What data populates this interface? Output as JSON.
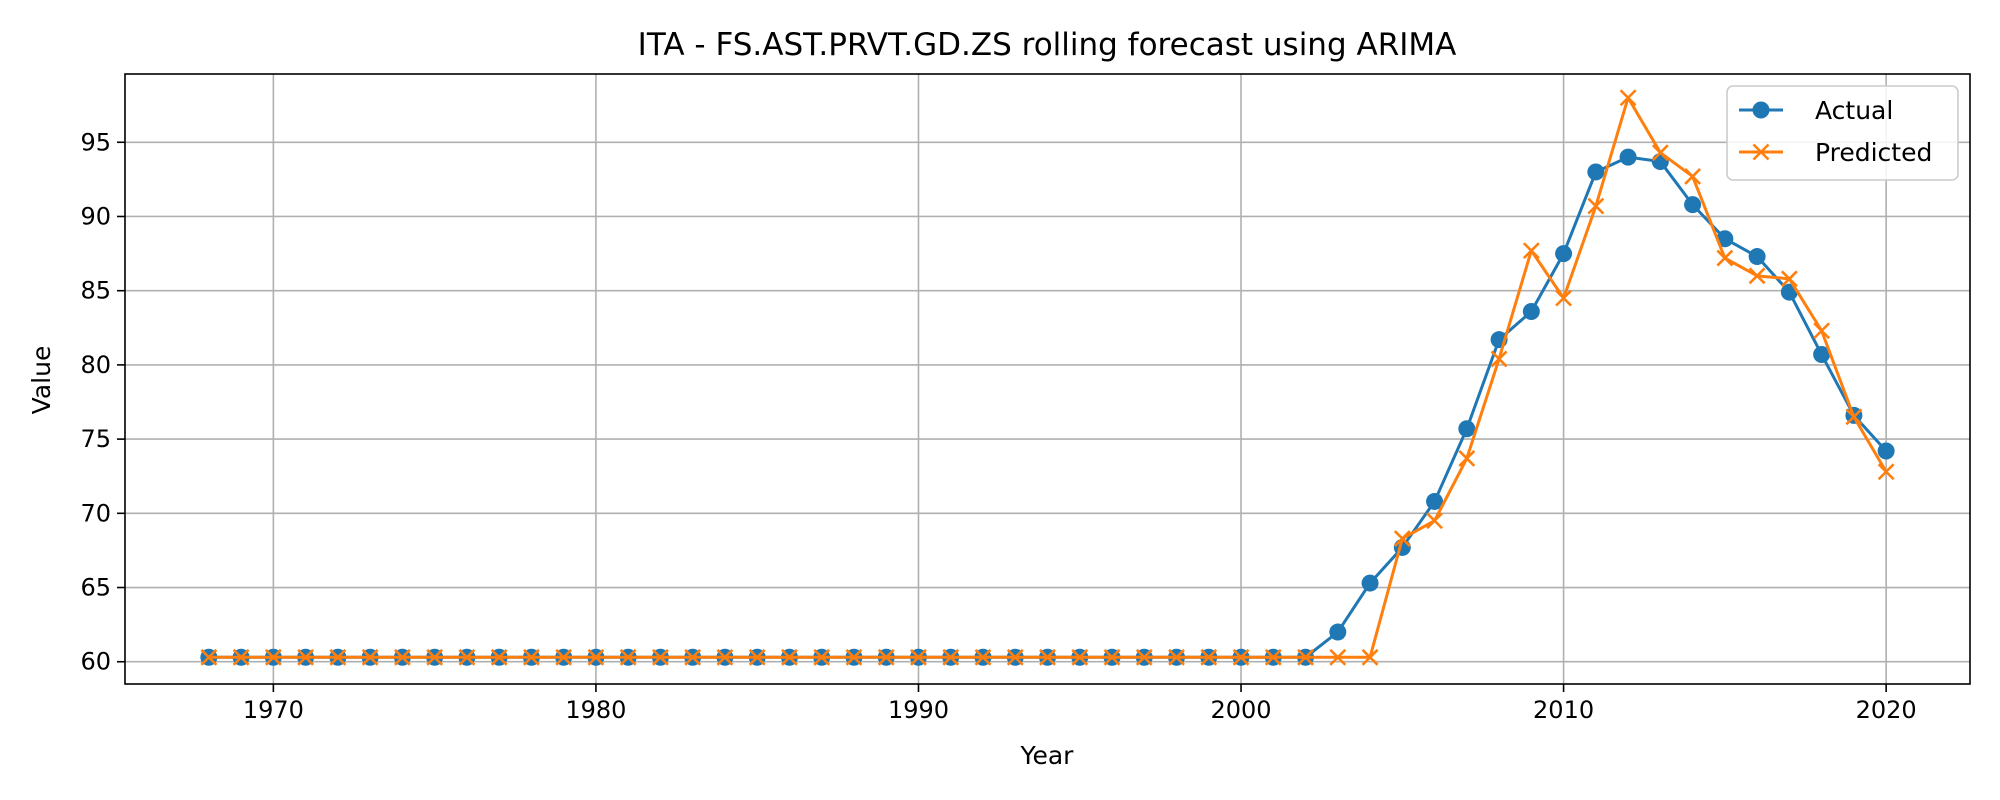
{
  "chart_data": {
    "type": "line",
    "title": "ITA - FS.AST.PRVT.GD.ZS rolling forecast using ARIMA",
    "xlabel": "Year",
    "ylabel": "Value",
    "xlim": [
      1965.4,
      2022.6
    ],
    "ylim": [
      58.5,
      99.6
    ],
    "x_ticks": [
      1970,
      1980,
      1990,
      2000,
      2010,
      2020
    ],
    "y_ticks": [
      60,
      65,
      70,
      75,
      80,
      85,
      90,
      95
    ],
    "grid": true,
    "legend_position": "top-right",
    "x": [
      1968,
      1969,
      1970,
      1971,
      1972,
      1973,
      1974,
      1975,
      1976,
      1977,
      1978,
      1979,
      1980,
      1981,
      1982,
      1983,
      1984,
      1985,
      1986,
      1987,
      1988,
      1989,
      1990,
      1991,
      1992,
      1993,
      1994,
      1995,
      1996,
      1997,
      1998,
      1999,
      2000,
      2001,
      2002,
      2003,
      2004,
      2005,
      2006,
      2007,
      2008,
      2009,
      2010,
      2011,
      2012,
      2013,
      2014,
      2015,
      2016,
      2017,
      2018,
      2019,
      2020
    ],
    "series": [
      {
        "name": "Actual",
        "color": "#1f77b4",
        "marker": "circle",
        "values": [
          60.3,
          60.3,
          60.3,
          60.3,
          60.3,
          60.3,
          60.3,
          60.3,
          60.3,
          60.3,
          60.3,
          60.3,
          60.3,
          60.3,
          60.3,
          60.3,
          60.3,
          60.3,
          60.3,
          60.3,
          60.3,
          60.3,
          60.3,
          60.3,
          60.3,
          60.3,
          60.3,
          60.3,
          60.3,
          60.3,
          60.3,
          60.3,
          60.3,
          60.3,
          60.3,
          62.0,
          65.3,
          67.7,
          70.8,
          75.7,
          81.7,
          83.6,
          87.5,
          93.0,
          94.0,
          93.7,
          90.8,
          88.5,
          87.3,
          84.9,
          80.7,
          76.6,
          74.2
        ]
      },
      {
        "name": "Predicted",
        "color": "#ff7f0e",
        "marker": "x",
        "values": [
          60.3,
          60.3,
          60.3,
          60.3,
          60.3,
          60.3,
          60.3,
          60.3,
          60.3,
          60.3,
          60.3,
          60.3,
          60.3,
          60.3,
          60.3,
          60.3,
          60.3,
          60.3,
          60.3,
          60.3,
          60.3,
          60.3,
          60.3,
          60.3,
          60.3,
          60.3,
          60.3,
          60.3,
          60.3,
          60.3,
          60.3,
          60.3,
          60.3,
          60.3,
          60.3,
          60.3,
          60.3,
          68.3,
          69.5,
          73.7,
          80.4,
          87.7,
          84.5,
          90.7,
          98.0,
          94.3,
          92.7,
          87.2,
          86.0,
          85.8,
          82.3,
          76.5,
          72.8
        ]
      }
    ]
  }
}
